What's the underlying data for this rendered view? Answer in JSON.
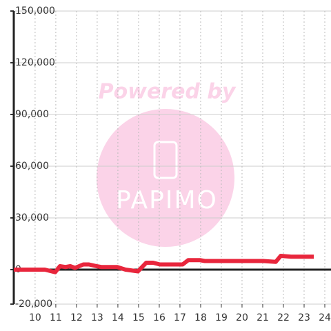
{
  "chart_data": {
    "type": "line",
    "watermark": "Powered by",
    "logo_text": "PAPIMO",
    "x": [
      8.97,
      10.47,
      10.97,
      11.2,
      11.47,
      11.7,
      11.93,
      12.33,
      12.6,
      12.97,
      13.2,
      13.97,
      14.37,
      14.97,
      15.37,
      15.7,
      16.03,
      17.13,
      17.4,
      17.97,
      18.2,
      21.03,
      21.63,
      21.87,
      22.37,
      23.47
    ],
    "series": [
      {
        "color": "#e8263c",
        "values": [
          0,
          0,
          -1500,
          2000,
          1500,
          2000,
          1000,
          3000,
          3000,
          2000,
          1500,
          1500,
          0,
          -1000,
          4000,
          4000,
          3000,
          3000,
          5500,
          5500,
          5000,
          5000,
          4500,
          8000,
          7500,
          7500
        ]
      }
    ],
    "xlim": [
      8.97,
      24.3
    ],
    "xticks": [
      10,
      11,
      12,
      13,
      14,
      15,
      16,
      17,
      18,
      19,
      20,
      21,
      22,
      23,
      24
    ],
    "ylim": [
      -20000,
      150000
    ],
    "yticks": [
      {
        "value": -20000,
        "label": "-20,000"
      },
      0,
      {
        "value": 30000,
        "label": "30,000"
      },
      {
        "value": 60000,
        "label": "60,000"
      },
      {
        "value": 90000,
        "label": "90,000"
      },
      {
        "value": 120000,
        "label": "120,000"
      },
      {
        "value": 150000,
        "label": "150,000"
      }
    ],
    "grid": true
  }
}
